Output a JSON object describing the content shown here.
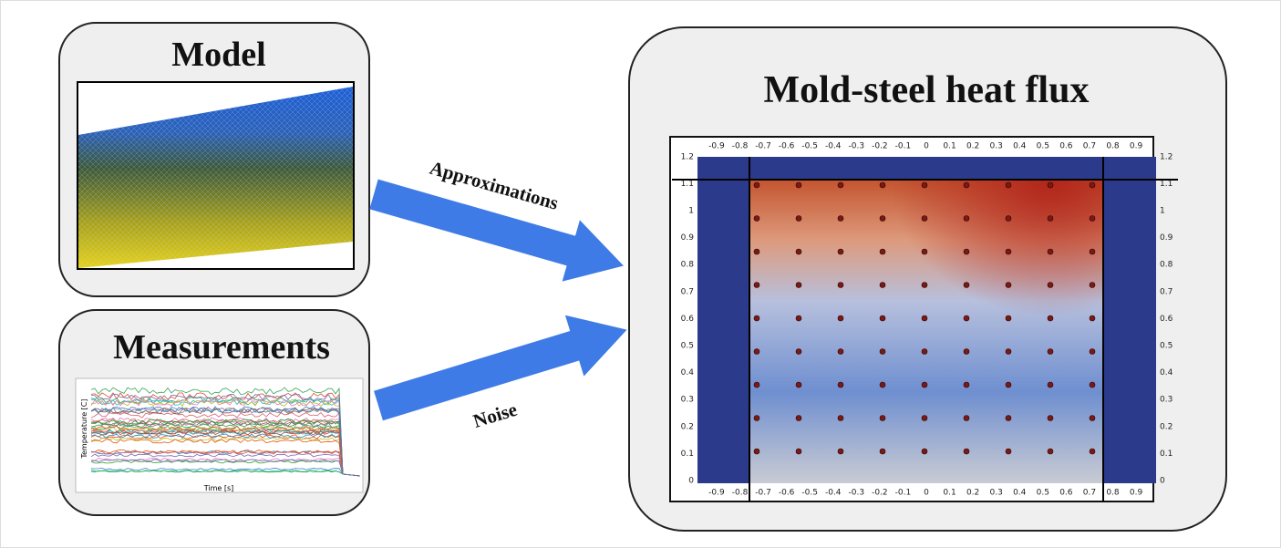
{
  "panels": {
    "model": {
      "title": "Model"
    },
    "measurements": {
      "title": "Measurements",
      "plot": {
        "y_label": "Temperature [C]",
        "x_label": "Time [s]"
      }
    },
    "result": {
      "title": "Mold-steel heat flux",
      "x_ticks": [
        -0.9,
        -0.8,
        -0.7,
        -0.6,
        -0.5,
        -0.4,
        -0.3,
        -0.2,
        -0.1,
        0,
        0.1,
        0.2,
        0.3,
        0.4,
        0.5,
        0.6,
        0.7,
        0.8,
        0.9
      ],
      "y_ticks": [
        0,
        0.1,
        0.2,
        0.3,
        0.4,
        0.5,
        0.6,
        0.7,
        0.8,
        0.9,
        1,
        1.1,
        1.2
      ]
    }
  },
  "arrows": [
    {
      "label": "Approximations"
    },
    {
      "label": "Noise"
    }
  ]
}
